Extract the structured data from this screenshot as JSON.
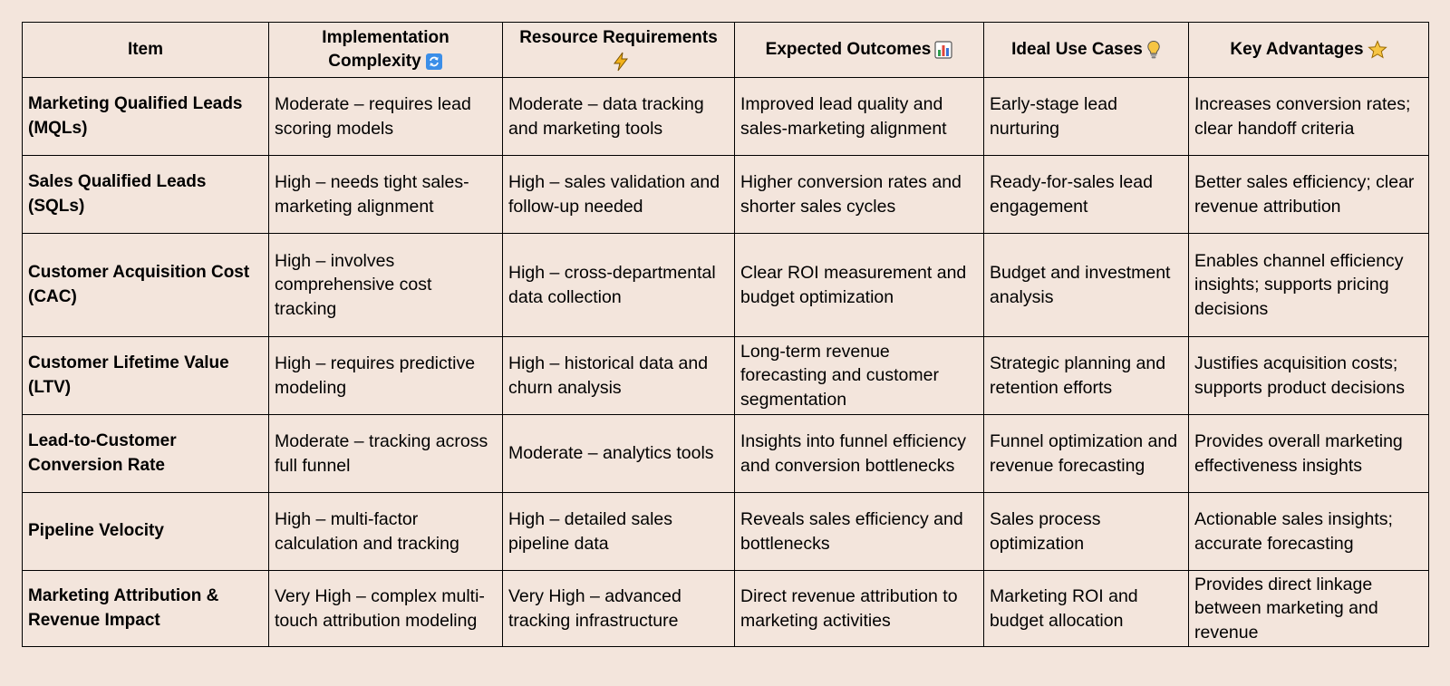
{
  "table": {
    "headers": {
      "item": "Item",
      "complexity": "Implementation Complexity",
      "resources": "Resource Requirements",
      "outcomes": "Expected Outcomes",
      "use_cases": "Ideal Use Cases",
      "advantages": "Key Advantages"
    },
    "header_icons": {
      "complexity": "refresh-icon",
      "resources": "lightning-icon",
      "outcomes": "bar-chart-icon",
      "use_cases": "lightbulb-icon",
      "advantages": "star-icon"
    },
    "rows": [
      {
        "item": "Marketing Qualified Leads (MQLs)",
        "complexity": "Moderate – requires lead scoring models",
        "resources": "Moderate – data tracking and marketing tools",
        "outcomes": "Improved lead quality and sales-marketing alignment",
        "use_cases": "Early-stage lead nurturing",
        "advantages": "Increases conversion rates; clear handoff criteria"
      },
      {
        "item": "Sales Qualified Leads (SQLs)",
        "complexity": "High – needs tight sales-marketing alignment",
        "resources": "High – sales validation and follow-up needed",
        "outcomes": "Higher conversion rates and shorter sales cycles",
        "use_cases": "Ready-for-sales lead engagement",
        "advantages": "Better sales efficiency; clear revenue attribution"
      },
      {
        "item": "Customer Acquisition Cost (CAC)",
        "complexity": "High – involves comprehensive cost tracking",
        "resources": "High – cross-departmental data collection",
        "outcomes": "Clear ROI measurement and budget optimization",
        "use_cases": "Budget and investment analysis",
        "advantages": "Enables channel efficiency insights; supports pricing decisions"
      },
      {
        "item": "Customer Lifetime Value (LTV)",
        "complexity": "High – requires predictive modeling",
        "resources": "High – historical data and churn analysis",
        "outcomes": "Long-term revenue forecasting and customer segmentation",
        "use_cases": "Strategic planning and retention efforts",
        "advantages": "Justifies acquisition costs; supports product decisions"
      },
      {
        "item": "Lead-to-Customer Conversion Rate",
        "complexity": "Moderate – tracking across full funnel",
        "resources": "Moderate – analytics tools",
        "outcomes": "Insights into funnel efficiency and conversion bottlenecks",
        "use_cases": "Funnel optimization and revenue forecasting",
        "advantages": "Provides overall marketing effectiveness insights"
      },
      {
        "item": "Pipeline Velocity",
        "complexity": "High – multi-factor calculation and tracking",
        "resources": "High – detailed sales pipeline data",
        "outcomes": "Reveals sales efficiency and bottlenecks",
        "use_cases": "Sales process optimization",
        "advantages": "Actionable sales insights; accurate forecasting"
      },
      {
        "item": "Marketing Attribution & Revenue Impact",
        "complexity": "Very High – complex multi-touch attribution modeling",
        "resources": "Very High – advanced tracking infrastructure",
        "outcomes": "Direct revenue attribution to marketing activities",
        "use_cases": "Marketing ROI and budget allocation",
        "advantages": "Provides direct linkage between marketing and revenue"
      }
    ]
  },
  "colors": {
    "background": "#f3e5dc",
    "border": "#000000",
    "refresh_icon": "#3b8ee8",
    "lightning_icon": "#f2b21b",
    "lightbulb_icon": "#f6c544",
    "star_icon": "#f6c544"
  }
}
